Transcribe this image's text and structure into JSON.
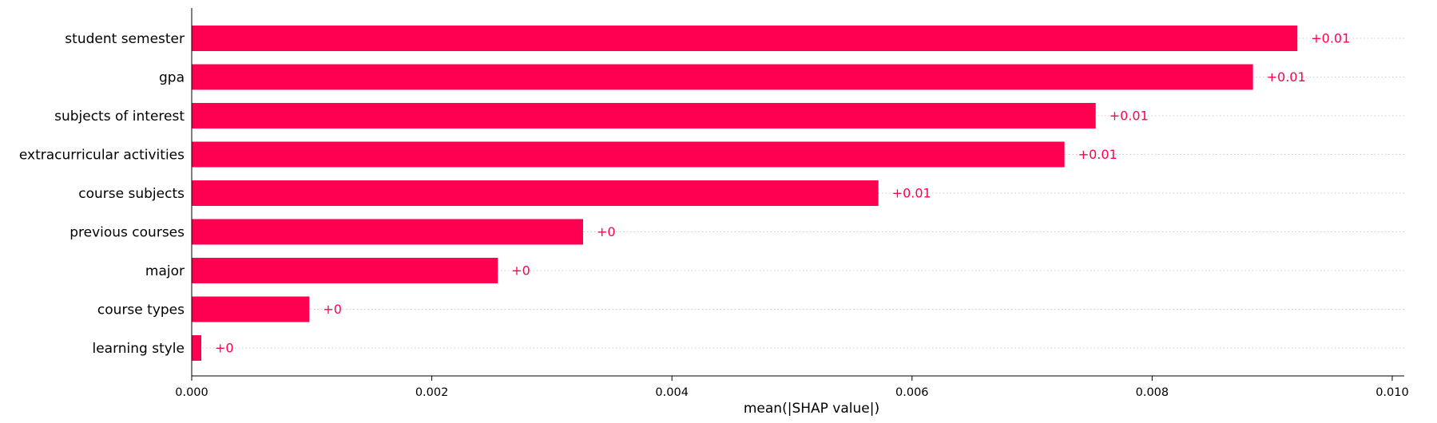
{
  "chart_data": {
    "type": "bar",
    "orientation": "horizontal",
    "categories": [
      "student semester",
      "gpa",
      "subjects of interest",
      "extracurricular activities",
      "course subjects",
      "previous courses",
      "major",
      "course types",
      "learning style"
    ],
    "values": [
      0.00921,
      0.00884,
      0.00753,
      0.00727,
      0.00572,
      0.00326,
      0.00255,
      0.00098,
      8e-05
    ],
    "value_labels": [
      "+0.01",
      "+0.01",
      "+0.01",
      "+0.01",
      "+0.01",
      "+0",
      "+0",
      "+0",
      "+0"
    ],
    "xlabel": "mean(|SHAP value|)",
    "xlim": [
      0,
      0.0101
    ],
    "xticks": [
      0.0,
      0.002,
      0.004,
      0.006,
      0.008,
      0.01
    ],
    "xtick_labels": [
      "0.000",
      "0.002",
      "0.004",
      "0.006",
      "0.008",
      "0.010"
    ],
    "bar_color": "#ff0051",
    "grid": "dotted horizontal lines at each category",
    "legend": "none"
  }
}
